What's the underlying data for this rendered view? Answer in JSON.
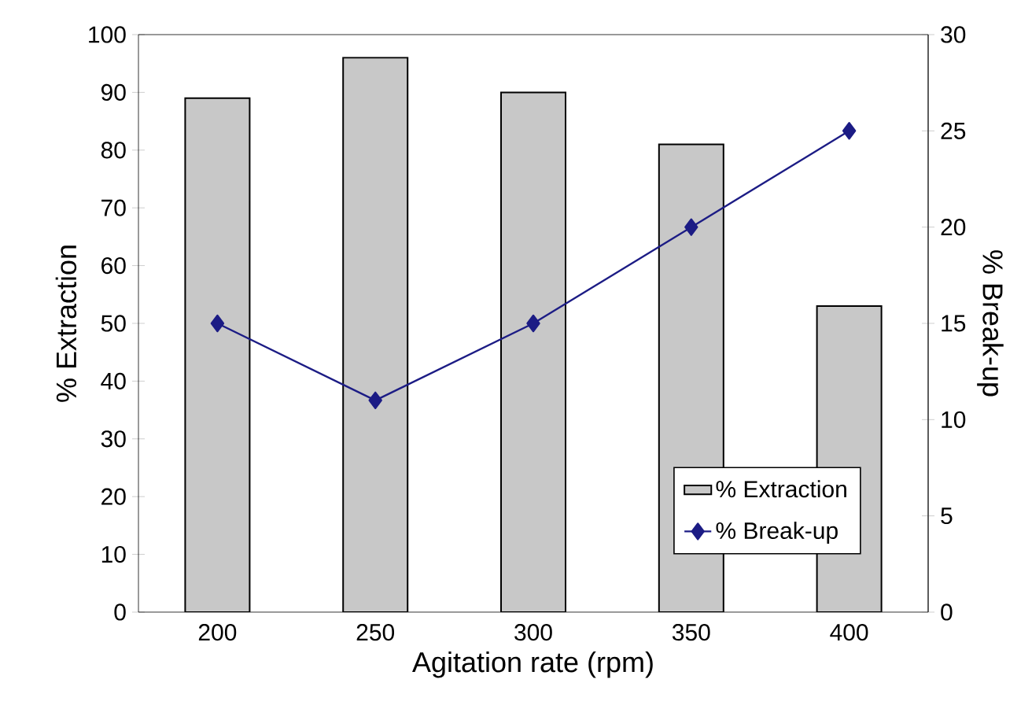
{
  "chart_data": {
    "type": "bar",
    "xlabel": "Agitation rate (rpm)",
    "ylabel": "% Extraction",
    "y2label": "% Break-up",
    "categories": [
      "200",
      "250",
      "300",
      "350",
      "400"
    ],
    "series": [
      {
        "name": "% Extraction",
        "color": "#c8c8c8",
        "values": [
          89,
          96,
          90,
          81,
          53
        ]
      },
      {
        "name": "% Break-up",
        "type": "line",
        "axis": "y2",
        "color": "#1c1c85",
        "marker": "diamond",
        "line_style": "solid",
        "values": [
          15,
          11,
          15,
          20,
          25
        ]
      }
    ],
    "ylim": [
      0,
      100
    ],
    "yticks": [
      0,
      10,
      20,
      30,
      40,
      50,
      60,
      70,
      80,
      90,
      100
    ],
    "y2lim": [
      0,
      30
    ],
    "y2ticks": [
      0,
      5,
      10,
      15,
      20,
      25,
      30
    ],
    "grid": false,
    "legend": "bottom right"
  }
}
